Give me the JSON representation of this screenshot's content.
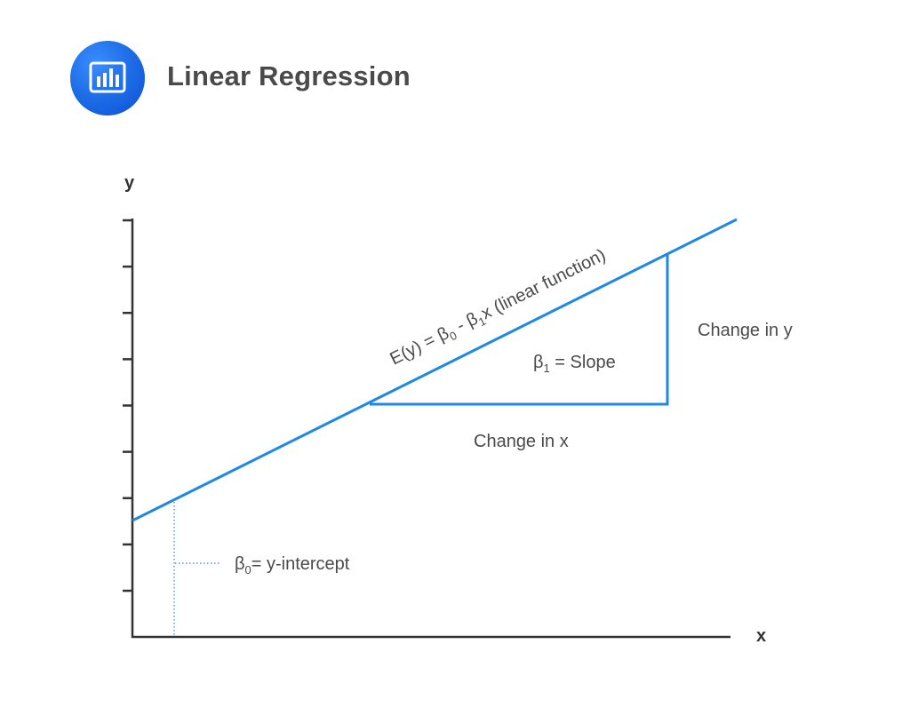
{
  "title": "Linear Regression",
  "icon": "bar-chart-icon",
  "colors": {
    "accent": "#1a73e8",
    "line": "#1e88e5",
    "axis": "#333333",
    "text": "#4a4a4a"
  },
  "axes": {
    "x_label": "x",
    "y_label": "y",
    "y_ticks": 9
  },
  "annotations": {
    "equation": {
      "e": "E(y) = β",
      "s0": "0",
      "mid": " - β",
      "s1": "1",
      "tail": "x (linear function)"
    },
    "slope": {
      "b": "β",
      "sub": "1",
      "rest": " = Slope"
    },
    "change_y": "Change in y",
    "change_x": "Change in x",
    "intercept": {
      "b": "β",
      "sub": "0",
      "rest": "= y-intercept"
    }
  }
}
